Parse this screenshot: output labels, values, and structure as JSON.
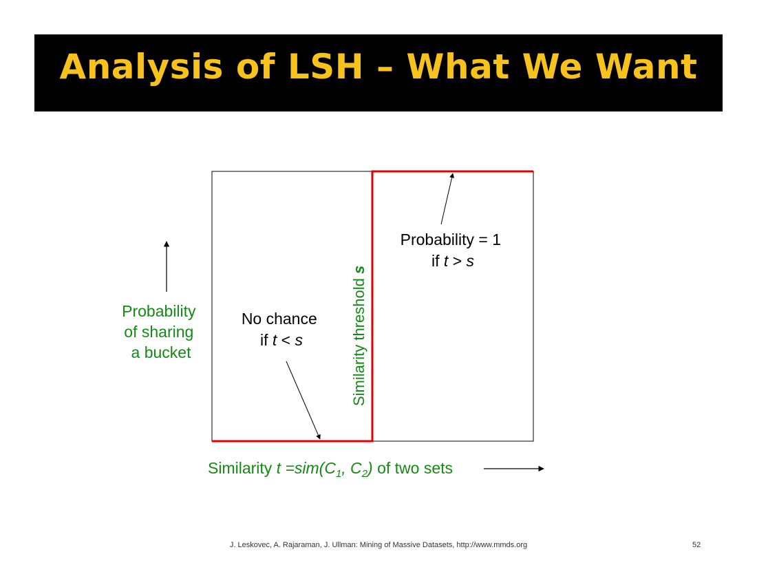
{
  "slide": {
    "title": "Analysis of LSH – What We Want",
    "title_color": "#f7c21b",
    "footer": "J. Leskovec, A. Rajaraman, J. Ullman: Mining of Massive Datasets, http://www.mmds.org",
    "page_number": "52"
  },
  "diagram": {
    "y_axis_label": [
      "Probability",
      "of sharing",
      "a bucket"
    ],
    "x_axis_label": {
      "prefix": "Similarity ",
      "t": "t",
      "eq": " =sim(C",
      "sub1": "1",
      "comma": ", C",
      "sub2": "2",
      "close": ")",
      "suffix": " of two sets"
    },
    "threshold_label": {
      "text": "Similarity threshold ",
      "s": "s"
    },
    "no_chance": {
      "line1": "No chance",
      "if": "if ",
      "t": "t",
      "lt": " < ",
      "s": "s"
    },
    "prob_one": {
      "line1": "Probability = 1",
      "if": "if ",
      "t": "t",
      "gt": " > ",
      "s": "s"
    },
    "colors": {
      "label_green": "#138a13",
      "step_red": "#e00000",
      "frame": "#000000"
    }
  }
}
